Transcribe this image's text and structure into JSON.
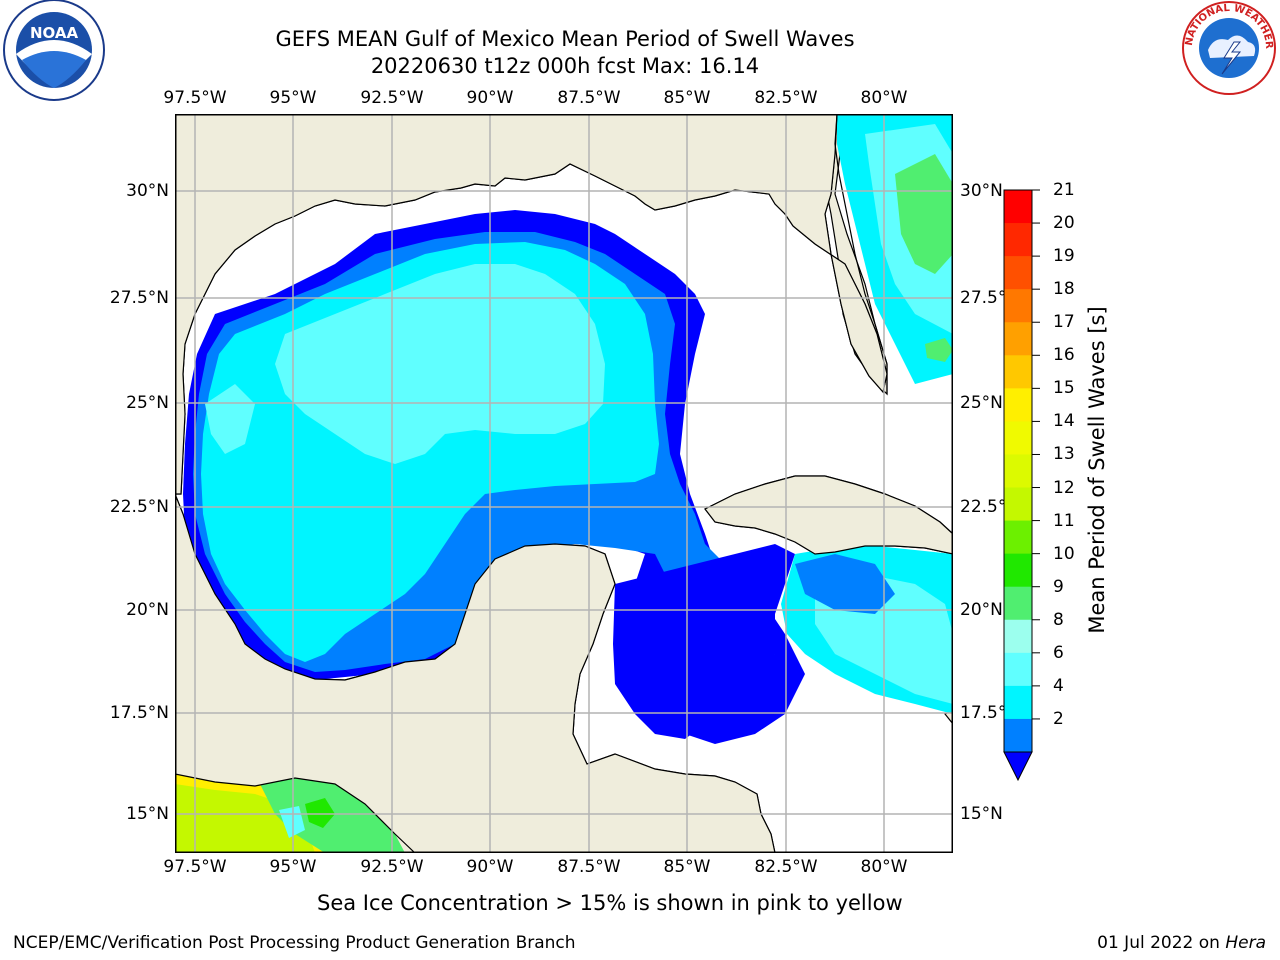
{
  "title_line1": "GEFS MEAN Gulf of Mexico Mean Period of Swell Waves",
  "title_line2": "20220630 t12z 000h fcst   Max: 16.14",
  "longitude_labels": [
    "97.5°W",
    "95°W",
    "92.5°W",
    "90°W",
    "87.5°W",
    "85°W",
    "82.5°W",
    "80°W"
  ],
  "latitude_labels": [
    "30°N",
    "27.5°N",
    "25°N",
    "22.5°N",
    "20°N",
    "17.5°N",
    "15°N"
  ],
  "colorbar": {
    "label": "Mean Period of Swell Waves [s]",
    "ticks": [
      "21",
      "20",
      "19",
      "18",
      "17",
      "16",
      "15",
      "14",
      "13",
      "12",
      "11",
      "10",
      "9",
      "8",
      "6",
      "4",
      "2"
    ],
    "colors": [
      "#ff0000",
      "#ff2800",
      "#ff5000",
      "#ff7800",
      "#ffa000",
      "#ffc800",
      "#ffef00",
      "#f0fa00",
      "#dcfa00",
      "#c4f800",
      "#6cf000",
      "#20e800",
      "#50ee70",
      "#9cffee",
      "#60ffff",
      "#00f5ff",
      "#0080ff"
    ],
    "extend_color": "#0000ff"
  },
  "colors": {
    "land": "#efeddc",
    "ocean_no_data": "#ffffff",
    "grid": "#b4b4b4",
    "coast": "#000000",
    "swell_dark_blue": "#0000ff",
    "swell_blue": "#0080ff",
    "swell_light_cyan": "#00f5ff",
    "swell_pale_cyan": "#60ffff",
    "swell_green": "#50ee70",
    "swell_yellow": "#ffef00"
  },
  "footnote": "Sea Ice Concentration > 15% is shown in pink to yellow",
  "footer_left": "NCEP/EMC/Verification Post Processing Product Generation Branch",
  "footer_right_date": "01 Jul 2022 on ",
  "footer_right_host": "Hera",
  "logos": {
    "noaa_text": "NOAA",
    "nws_text": "NATIONAL WEATHER SERVICE"
  }
}
